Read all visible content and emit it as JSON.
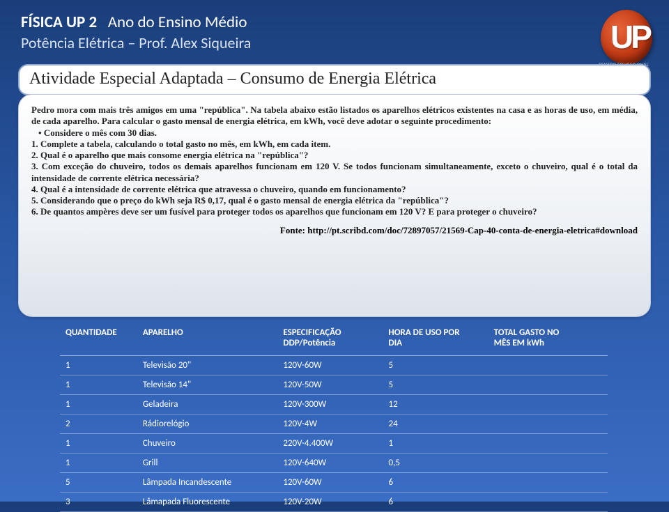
{
  "header": {
    "title_bold": "FÍSICA UP 2",
    "title_rest": "Ano do Ensino Médio",
    "subtitle": "Potência  Elétrica – Prof. Alex Siqueira"
  },
  "logo": {
    "text": "UP",
    "caption": "CENTRO EDUCACIONAL"
  },
  "activity_title": "Atividade Especial  Adaptada – Consumo de Energia Elétrica",
  "body": {
    "intro": "Pedro mora com mais três amigos em uma \"república\". Na tabela abaixo estão listados os aparelhos elétricos existentes na casa e as horas de uso, em média, de cada aparelho. Para calcular o gasto mensal de energia elétrica, em kWh, você deve adotar o seguinte procedimento:",
    "bullet": "• Considere o mês com 30 dias.",
    "q1": "1. Complete a tabela, calculando o total gasto no mês, em kWh, em cada item.",
    "q2": "2. Qual é o aparelho que mais consome energia elétrica na \"república\"?",
    "q3": "3. Com exceção do chuveiro, todos os demais aparelhos funcionam em 120 V. Se todos funcionam simultaneamente, exceto o chuveiro, qual é o total da intensidade de corrente elétrica necessária?",
    "q4": "4. Qual é a intensidade de corrente elétrica que atravessa o chuveiro, quando em funcionamento?",
    "q5": "5. Considerando que o preço do kWh seja R$ 0,17, qual é o gasto mensal de energia elétrica da \"república\"?",
    "q6": "6. De quantos ampères deve ser um fusível para proteger todos os aparelhos que funcionam em 120 V? E para proteger o chuveiro?",
    "fonte": "Fonte: http://pt.scribd.com/doc/72897057/21569-Cap-40-conta-de-energia-eletrica#download"
  },
  "table": {
    "headers": {
      "c1": "QUANTIDADE",
      "c2": "APARELHO",
      "c3a": "ESPECIFICAÇÃO",
      "c3b": "DDP/Potência",
      "c4a": "HORA DE USO POR",
      "c4b": "DIA",
      "c5a": "TOTAL GASTO NO",
      "c5b": "MÊS EM kWh"
    },
    "rows": [
      {
        "qty": "1",
        "app": "Televisão 20\"",
        "spec": "120V-60W",
        "hrs": "5",
        "tot": ""
      },
      {
        "qty": "1",
        "app": "Televisão 14\"",
        "spec": "120V-50W",
        "hrs": "5",
        "tot": ""
      },
      {
        "qty": "1",
        "app": "Geladeira",
        "spec": "120V-300W",
        "hrs": "12",
        "tot": ""
      },
      {
        "qty": "2",
        "app": "Rádiorelógio",
        "spec": "120V-4W",
        "hrs": "24",
        "tot": ""
      },
      {
        "qty": "1",
        "app": "Chuveiro",
        "spec": "220V-4.400W",
        "hrs": "1",
        "tot": ""
      },
      {
        "qty": "1",
        "app": "Grill",
        "spec": "120V-640W",
        "hrs": "0,5",
        "tot": ""
      },
      {
        "qty": "5",
        "app": "Lâmpada Incandescente",
        "spec": "120V-60W",
        "hrs": "6",
        "tot": ""
      },
      {
        "qty": "3",
        "app": "Lâmapada Fluorescente",
        "spec": "120V-20W",
        "hrs": "6",
        "tot": ""
      }
    ]
  },
  "colors": {
    "bg_top": "#1a3e7a",
    "bg_bottom": "#3a6dc4",
    "card_border": "#8fa8cc",
    "logo_main": "#c13a14"
  }
}
